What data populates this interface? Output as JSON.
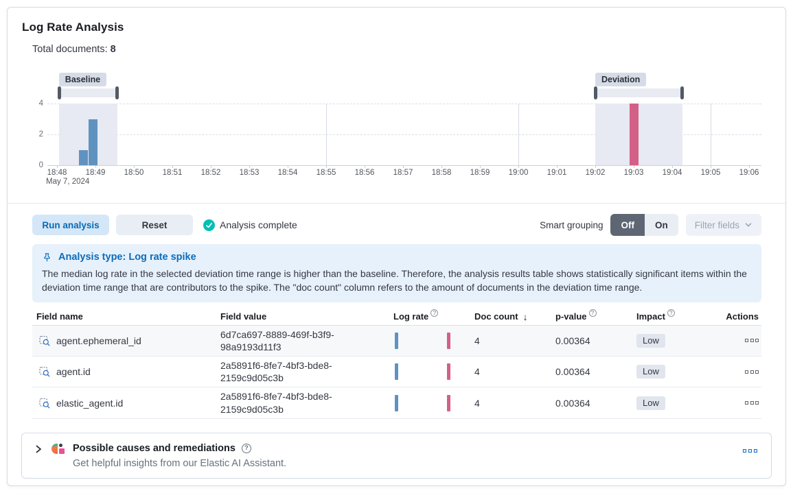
{
  "theme": {
    "primary": "#0B6CBB",
    "success": "#00BFB3"
  },
  "panel": {
    "title": "Log Rate Analysis",
    "total_documents": {
      "label": "Total documents:",
      "value": "8"
    }
  },
  "chart_data": {
    "type": "bar",
    "title": "Document count over time with baseline and deviation ranges",
    "x_axis": {
      "first_tick_date": "May 7, 2024",
      "ticks": [
        "18:48",
        "18:49",
        "18:50",
        "18:51",
        "18:52",
        "18:53",
        "18:54",
        "18:55",
        "18:56",
        "18:57",
        "18:58",
        "18:59",
        "19:00",
        "19:01",
        "19:02",
        "19:03",
        "19:04",
        "19:05",
        "19:06"
      ],
      "gridline_ticks": [
        "18:55",
        "19:00",
        "19:05"
      ]
    },
    "y_axis": {
      "ticks": [
        0,
        2,
        4
      ],
      "max": 4
    },
    "bars": [
      {
        "time": "18:48:40",
        "time_offset_min": 0.68,
        "count": 1,
        "series": "baseline"
      },
      {
        "time": "18:48:55",
        "time_offset_min": 0.93,
        "count": 3,
        "series": "baseline"
      },
      {
        "time": "19:03:00",
        "time_offset_min": 15.0,
        "count": 4,
        "series": "deviation"
      }
    ],
    "annotations": {
      "baseline": {
        "label": "Baseline",
        "start_offset_min": 0.05,
        "end_offset_min": 1.57
      },
      "deviation": {
        "label": "Deviation",
        "start_offset_min": 14.0,
        "end_offset_min": 16.27
      }
    },
    "colors": {
      "baseline": "#6092C0",
      "deviation": "#D36086",
      "annotation_fill": "#E7EAF3"
    }
  },
  "controls": {
    "run_button": "Run analysis",
    "reset_button": "Reset",
    "status": "Analysis complete",
    "smart_grouping_label": "Smart grouping",
    "smart_grouping_off": "Off",
    "smart_grouping_on": "On",
    "smart_grouping_selected": "Off",
    "filter_fields_button": "Filter fields"
  },
  "callout": {
    "title": "Analysis type: Log rate spike",
    "body": "The median log rate in the selected deviation time range is higher than the baseline. Therefore, the analysis results table shows statistically significant items within the deviation time range that are contributors to the spike. The \"doc count\" column refers to the amount of documents in the deviation time range."
  },
  "table": {
    "columns": [
      {
        "label": "Field name"
      },
      {
        "label": "Field value"
      },
      {
        "label": "Log rate",
        "help": true
      },
      {
        "label": "Doc count",
        "sort": "desc"
      },
      {
        "label": "p-value",
        "help": true
      },
      {
        "label": "Impact",
        "help": true
      },
      {
        "label": "Actions",
        "align": "right"
      }
    ],
    "rows": [
      {
        "field_name": "agent.ephemeral_id",
        "field_value": "6d7ca697-8889-469f-b3f9-98a9193d11f3",
        "doc_count": "4",
        "p_value": "0.00364",
        "impact": "Low"
      },
      {
        "field_name": "agent.id",
        "field_value": "2a5891f6-8fe7-4bf3-bde8-2159c9d05c3b",
        "doc_count": "4",
        "p_value": "0.00364",
        "impact": "Low"
      },
      {
        "field_name": "elastic_agent.id",
        "field_value": "2a5891f6-8fe7-4bf3-bde8-2159c9d05c3b",
        "doc_count": "4",
        "p_value": "0.00364",
        "impact": "Low"
      }
    ]
  },
  "footer": {
    "title": "Possible causes and remediations",
    "subtitle": "Get helpful insights from our Elastic AI Assistant."
  }
}
